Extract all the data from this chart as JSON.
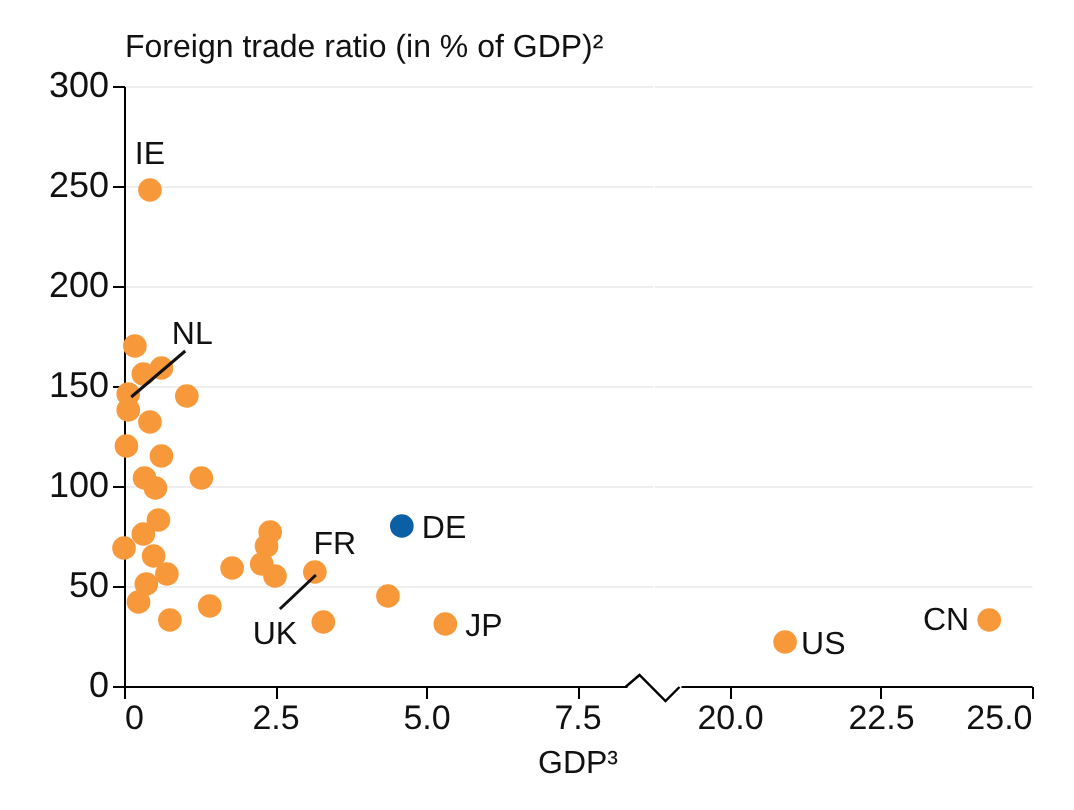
{
  "chart_data": [
    {
      "type": "scatter",
      "ylabel": "Foreign trade ratio (in % of GDP)²",
      "xlabel": "GDP³",
      "xlim": [
        0,
        8.75
      ],
      "xticks": [
        0,
        2.5,
        {
          "value": 5,
          "label": "5.0"
        },
        7.5
      ],
      "ylim": [
        0,
        300
      ],
      "yticks": [
        0,
        50,
        100,
        150,
        200,
        250,
        300
      ],
      "grid": "y",
      "marker": "circle",
      "series": [
        {
          "color": "#f7993a",
          "x": [
            0.43,
            0.18,
            0.32,
            0.62,
            1.04,
            0.07,
            0.07,
            0.43,
            0.04,
            0.62,
            1.28,
            0.34,
            0.52,
            0.57,
            0.32,
            0,
            0.49,
            0.71,
            0.37,
            0.24,
            0.76,
            1.42,
            1.79,
            2.42,
            2.36,
            2.28,
            2.5,
            3.16,
            3.3,
            4.37,
            5.32
          ],
          "values": [
            248,
            170,
            156,
            159,
            145,
            146,
            138,
            132,
            120,
            115,
            104,
            104,
            99,
            83,
            76,
            69,
            65,
            56,
            51,
            42,
            33,
            40,
            59,
            77,
            70,
            61,
            55,
            57,
            32,
            45,
            31
          ]
        },
        {
          "color": "#0b5fa5",
          "x": [
            4.6
          ],
          "values": [
            80
          ]
        }
      ],
      "annotations": [
        {
          "text": "IE",
          "x": 0.43,
          "y": 248
        },
        {
          "text": "NL",
          "x": 0.07,
          "y": 146
        },
        {
          "text": "FR",
          "x": 3.16,
          "y": 57
        },
        {
          "text": "UK",
          "x": 3.16,
          "y": 57
        },
        {
          "text": "DE",
          "x": 4.6,
          "y": 80
        },
        {
          "text": "JP",
          "x": 5.32,
          "y": 31
        }
      ]
    },
    {
      "type": "scatter",
      "xlim": [
        18.75,
        25
      ],
      "xticks": [
        {
          "value": 20,
          "label": "20.0"
        },
        22.5,
        {
          "value": 25,
          "label": "25.0"
        }
      ],
      "ylim": [
        0,
        300
      ],
      "yticks": [
        0,
        50,
        100,
        150,
        200,
        250,
        300
      ],
      "tick_labels": "x",
      "grid": "y",
      "marker": "circle",
      "series": [
        {
          "color": "#f7993a",
          "x": [
            20.92,
            24.3
          ],
          "values": [
            22,
            33
          ]
        }
      ],
      "annotations": [
        {
          "text": "US",
          "x": 20.92,
          "y": 22
        },
        {
          "text": "CN",
          "x": 24.3,
          "y": 33
        }
      ]
    }
  ]
}
